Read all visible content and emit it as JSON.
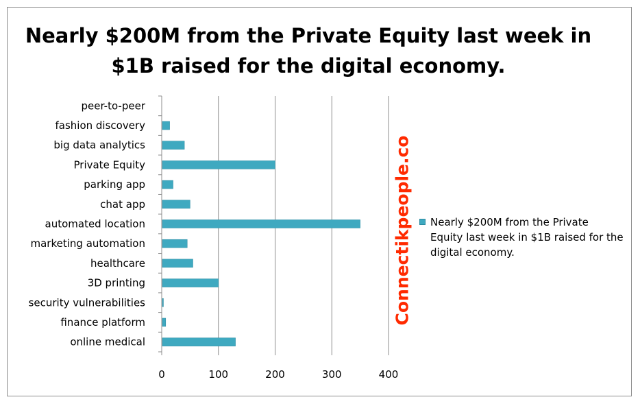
{
  "chart_data": {
    "type": "bar",
    "orientation": "horizontal",
    "title": "Nearly $200M from the Private Equity last week in $1B raised for the digital economy.",
    "categories": [
      "peer-to-peer",
      "fashion discovery",
      "big data analytics",
      "Private Equity",
      "parking app",
      "chat app",
      "automated location",
      "marketing automation",
      "healthcare",
      "3D printing",
      "security vulnerabilities",
      "finance platform",
      "online medical"
    ],
    "series": [
      {
        "name": "Nearly $200M from the Private Equity last week in $1B raised for the digital economy.",
        "values": [
          0,
          14,
          40,
          200,
          20,
          50,
          350,
          45,
          55,
          100,
          3,
          7,
          130
        ],
        "color": "#3fa9c0"
      }
    ],
    "xlim": [
      0,
      400
    ],
    "xticks": [
      "0",
      "100",
      "200",
      "300",
      "400"
    ],
    "grid": "vertical",
    "legend_position": "right"
  },
  "watermark": "Connectikpeople.co"
}
